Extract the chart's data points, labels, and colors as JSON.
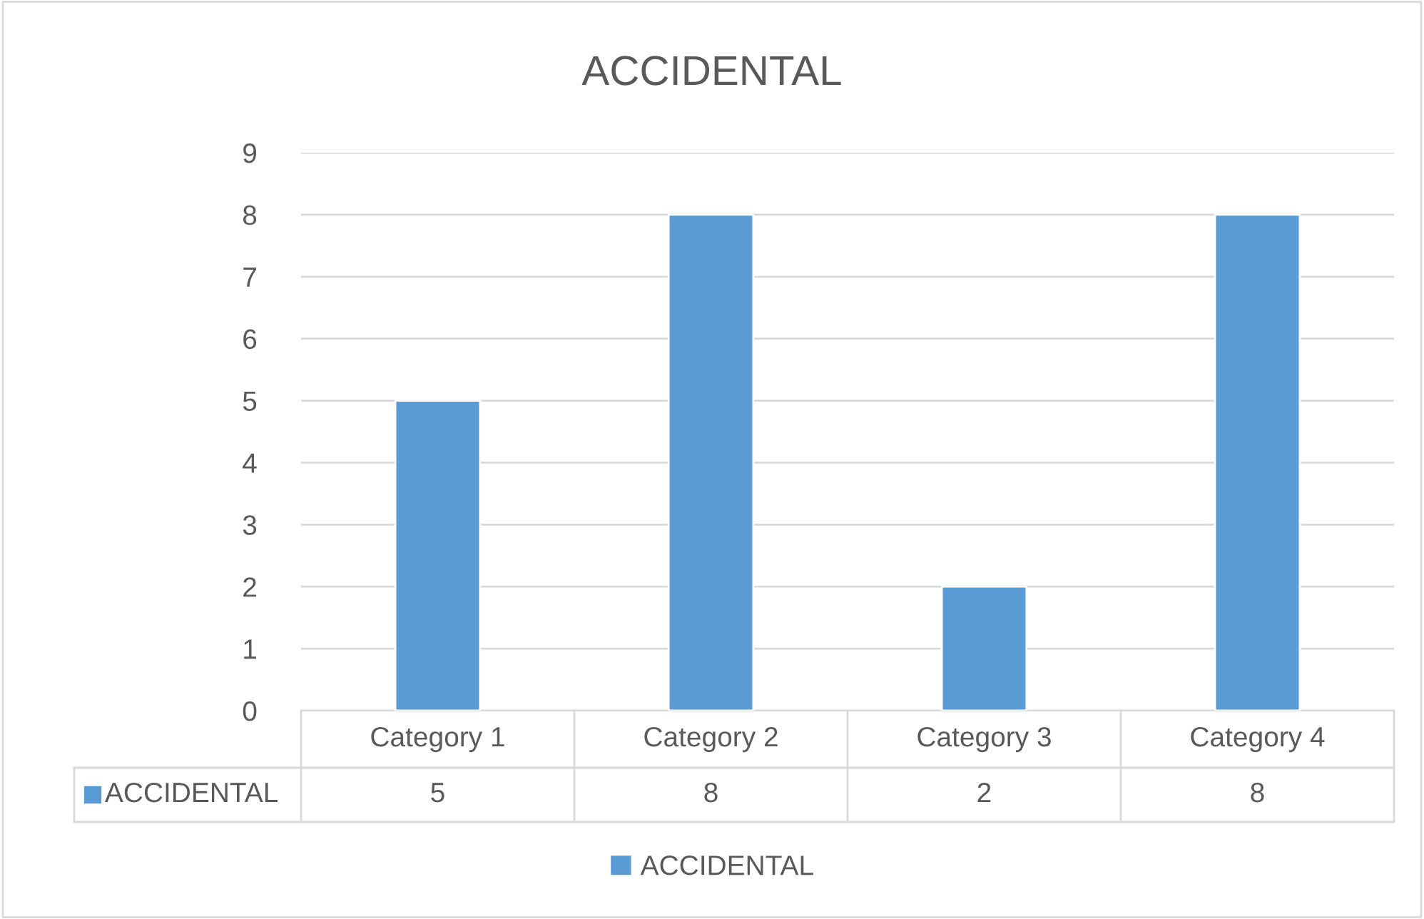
{
  "chart_data": {
    "type": "bar",
    "title": "ACCIDENTAL",
    "categories": [
      "Category 1",
      "Category 2",
      "Category 3",
      "Category 4"
    ],
    "series": [
      {
        "name": "ACCIDENTAL",
        "color": "#5b9bd5",
        "values": [
          5,
          8,
          2,
          8
        ]
      }
    ],
    "ylim": [
      0,
      9
    ],
    "yticks": [
      0,
      1,
      2,
      3,
      4,
      5,
      6,
      7,
      8,
      9
    ],
    "grid": "y",
    "legend": "bottom",
    "data_labels": true
  }
}
